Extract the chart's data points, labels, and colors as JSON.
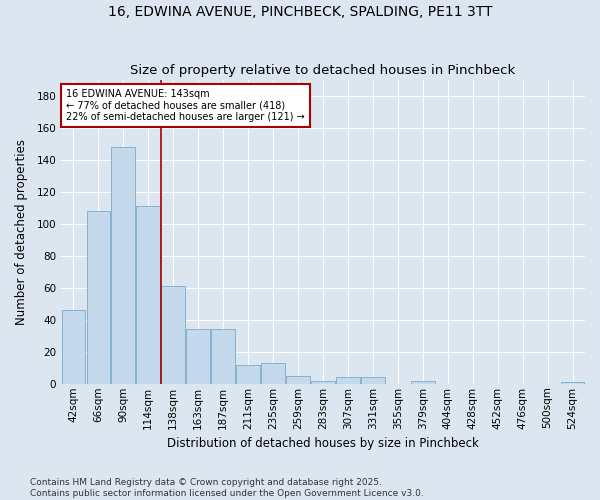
{
  "title": "16, EDWINA AVENUE, PINCHBECK, SPALDING, PE11 3TT",
  "subtitle": "Size of property relative to detached houses in Pinchbeck",
  "xlabel": "Distribution of detached houses by size in Pinchbeck",
  "ylabel": "Number of detached properties",
  "categories": [
    "42sqm",
    "66sqm",
    "90sqm",
    "114sqm",
    "138sqm",
    "163sqm",
    "187sqm",
    "211sqm",
    "235sqm",
    "259sqm",
    "283sqm",
    "307sqm",
    "331sqm",
    "355sqm",
    "379sqm",
    "404sqm",
    "428sqm",
    "452sqm",
    "476sqm",
    "500sqm",
    "524sqm"
  ],
  "values": [
    46,
    108,
    148,
    111,
    61,
    34,
    34,
    12,
    13,
    5,
    2,
    4,
    4,
    0,
    2,
    0,
    0,
    0,
    0,
    0,
    1
  ],
  "bar_color": "#c5d9ed",
  "bar_edge_color": "#7aaac8",
  "vline_x_index": 4,
  "vline_color": "#aa0000",
  "annotation_text": "16 EDWINA AVENUE: 143sqm\n← 77% of detached houses are smaller (418)\n22% of semi-detached houses are larger (121) →",
  "annotation_box_facecolor": "#ffffff",
  "annotation_box_edgecolor": "#aa0000",
  "ylim": [
    0,
    190
  ],
  "yticks": [
    0,
    20,
    40,
    60,
    80,
    100,
    120,
    140,
    160,
    180
  ],
  "bg_color": "#dce6f0",
  "plot_bg_color": "#dce6f0",
  "grid_color": "#ffffff",
  "footer_text": "Contains HM Land Registry data © Crown copyright and database right 2025.\nContains public sector information licensed under the Open Government Licence v3.0.",
  "title_fontsize": 10,
  "axis_label_fontsize": 8.5,
  "tick_fontsize": 7.5,
  "footer_fontsize": 6.5
}
